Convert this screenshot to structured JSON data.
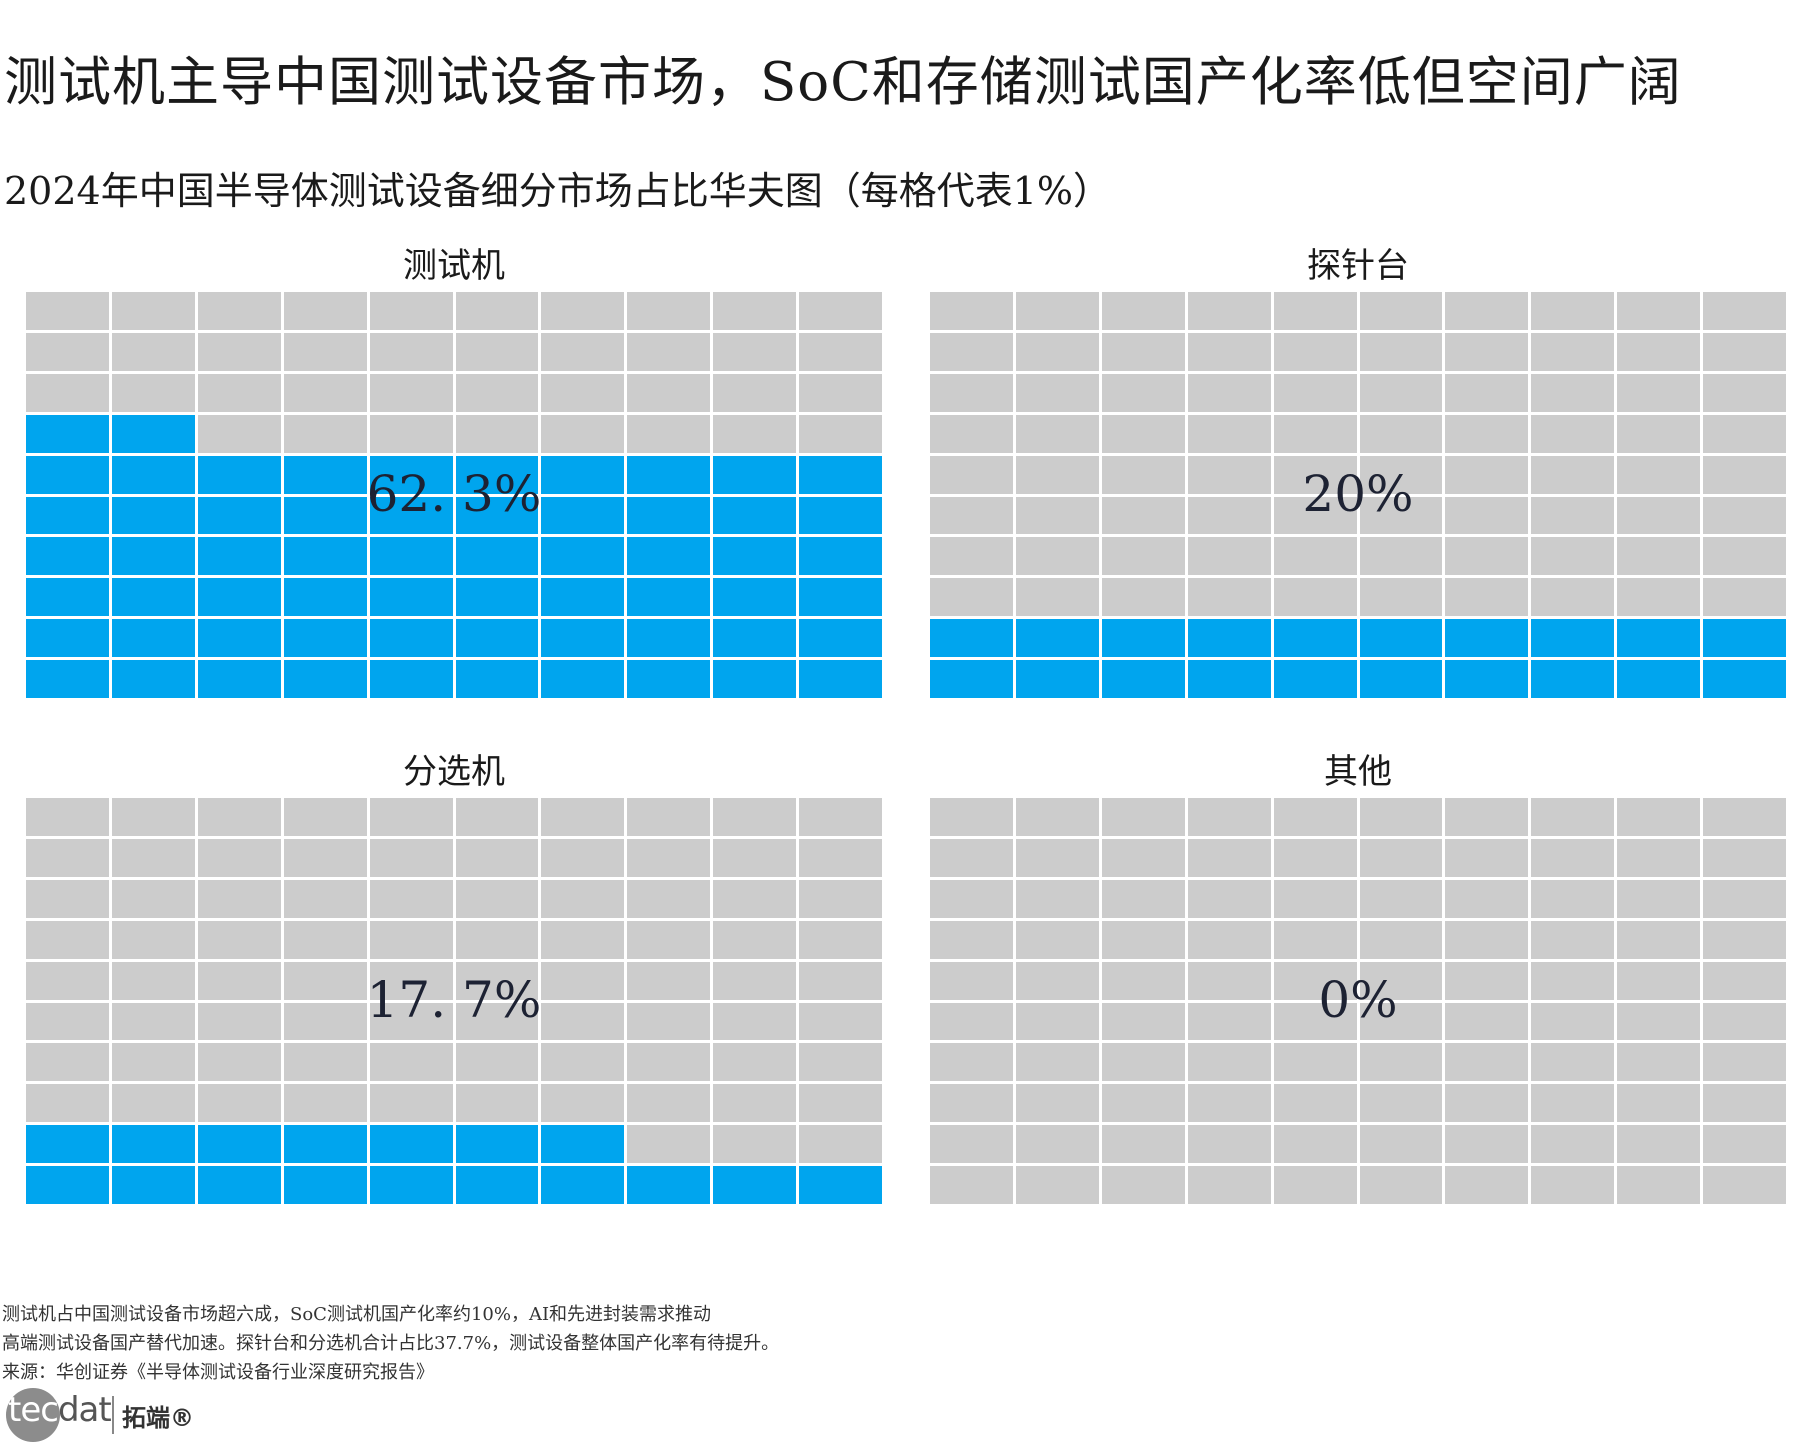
{
  "title": "测试机主导中国测试设备市场，SoC和存储测试国产化率低但空间广阔",
  "subtitle": "2024年中国半导体测试设备细分市场占比华夫图（每格代表1%）",
  "chart_data": {
    "type": "waffle",
    "grid": {
      "rows": 10,
      "cols": 10,
      "unit": "1%"
    },
    "colors": {
      "filled": "#00a5ee",
      "empty": "#cccccc"
    },
    "panels": [
      {
        "name": "测试机",
        "value": 62.3,
        "label": "62. 3%",
        "filled_cells": 62
      },
      {
        "name": "探针台",
        "value": 20,
        "label": "20%",
        "filled_cells": 20
      },
      {
        "name": "分选机",
        "value": 17.7,
        "label": "17. 7%",
        "filled_cells": 17
      },
      {
        "name": "其他",
        "value": 0,
        "label": "0%",
        "filled_cells": 0
      }
    ]
  },
  "notes": [
    "测试机占中国测试设备市场超六成，SoC测试机国产化率约10%，AI和先进封装需求推动",
    "高端测试设备国产替代加速。探针台和分选机合计占比37.7%，测试设备整体国产化率有待提升。",
    "来源：华创证券《半导体测试设备行业深度研究报告》"
  ],
  "logo": {
    "lead": "tec",
    "rest": "dat",
    "cn": "拓端®"
  }
}
